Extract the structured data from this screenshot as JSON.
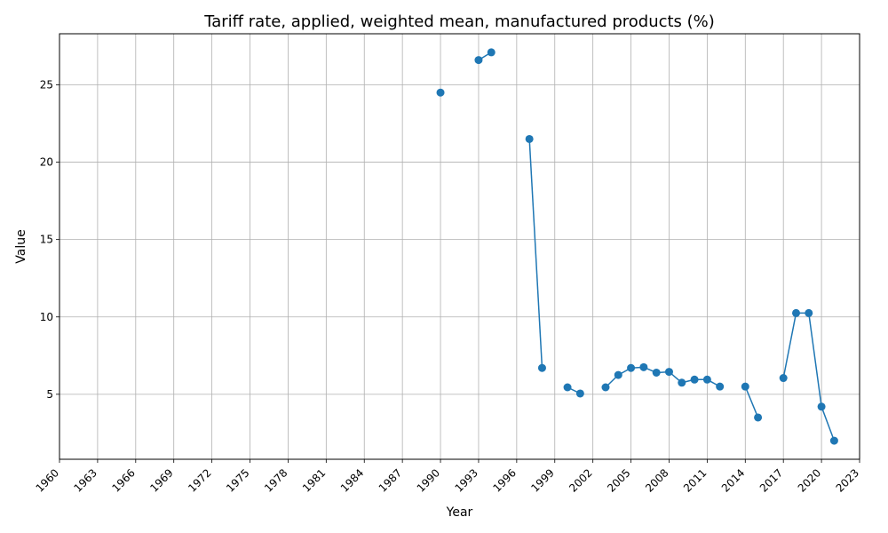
{
  "chart_data": {
    "type": "line",
    "title": "Tariff rate, applied, weighted mean, manufactured products (%)",
    "xlabel": "Year",
    "ylabel": "Value",
    "xlim": [
      1960,
      2023
    ],
    "ylim": [
      0.8,
      28.3
    ],
    "xticks": [
      1960,
      1963,
      1966,
      1969,
      1972,
      1975,
      1978,
      1981,
      1984,
      1987,
      1990,
      1993,
      1996,
      1999,
      2002,
      2005,
      2008,
      2011,
      2014,
      2017,
      2020,
      2023
    ],
    "yticks": [
      5,
      10,
      15,
      20,
      25
    ],
    "grid": true,
    "series": [
      {
        "color": "#1f77b4",
        "x": [
          1990,
          1991,
          1992,
          1993,
          1994,
          1995,
          1996,
          1997,
          1998,
          1999,
          2000,
          2001,
          2002,
          2003,
          2004,
          2005,
          2006,
          2007,
          2008,
          2009,
          2010,
          2011,
          2012,
          2013,
          2014,
          2015,
          2016,
          2017,
          2018,
          2019,
          2020,
          2021
        ],
        "y": [
          24.5,
          null,
          null,
          26.6,
          27.1,
          null,
          null,
          21.5,
          6.7,
          null,
          5.45,
          5.05,
          null,
          5.45,
          6.25,
          6.7,
          6.75,
          6.4,
          6.45,
          5.75,
          5.95,
          5.95,
          5.5,
          null,
          5.5,
          3.5,
          null,
          6.05,
          10.25,
          10.25,
          4.2,
          2.0
        ]
      }
    ]
  }
}
